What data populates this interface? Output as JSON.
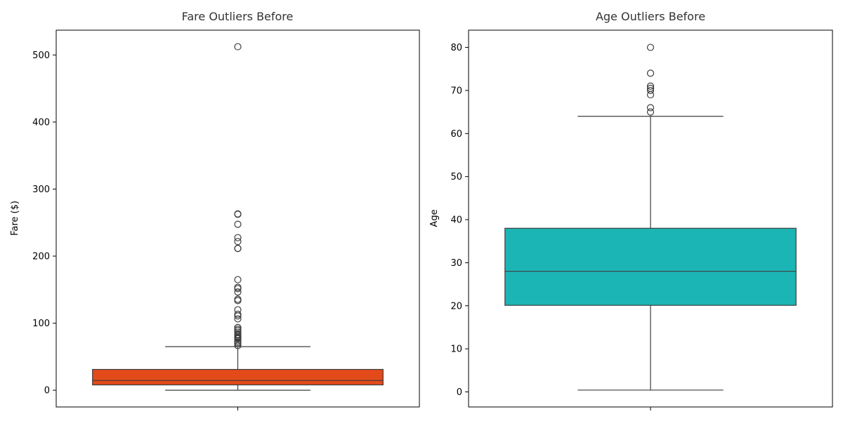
{
  "chart_data": [
    {
      "type": "box",
      "title": "Fare  Outliers Before",
      "xlabel": "",
      "ylabel": "Fare ($)",
      "ylim": [
        -25,
        537
      ],
      "yticks": [
        0,
        100,
        200,
        300,
        400,
        500
      ],
      "color": "#e34a1a",
      "stats": {
        "whisker_low": 0,
        "q1": 7.9,
        "median": 14.45,
        "q3": 31,
        "whisker_high": 65
      },
      "outliers": [
        66.6,
        69.55,
        71.28,
        73.5,
        76.73,
        77.96,
        79.2,
        80,
        82.17,
        83.16,
        86.5,
        89.1,
        91.08,
        93.5,
        106.43,
        110.88,
        113.28,
        120,
        133.65,
        135.63,
        146.52,
        151.55,
        153.46,
        164.87,
        211.34,
        211.5,
        221.78,
        227.53,
        247.52,
        262.38,
        263,
        512.33
      ]
    },
    {
      "type": "box",
      "title": "Age  Outliers Before",
      "xlabel": "",
      "ylabel": "Age",
      "ylim": [
        -3.5,
        84
      ],
      "yticks": [
        0,
        10,
        20,
        30,
        40,
        50,
        60,
        70,
        80
      ],
      "color": "#1cb5b5",
      "stats": {
        "whisker_low": 0.42,
        "q1": 20.1,
        "median": 28,
        "q3": 38,
        "whisker_high": 64
      },
      "outliers": [
        65,
        66,
        69,
        70,
        70.5,
        71,
        74,
        80
      ]
    }
  ]
}
